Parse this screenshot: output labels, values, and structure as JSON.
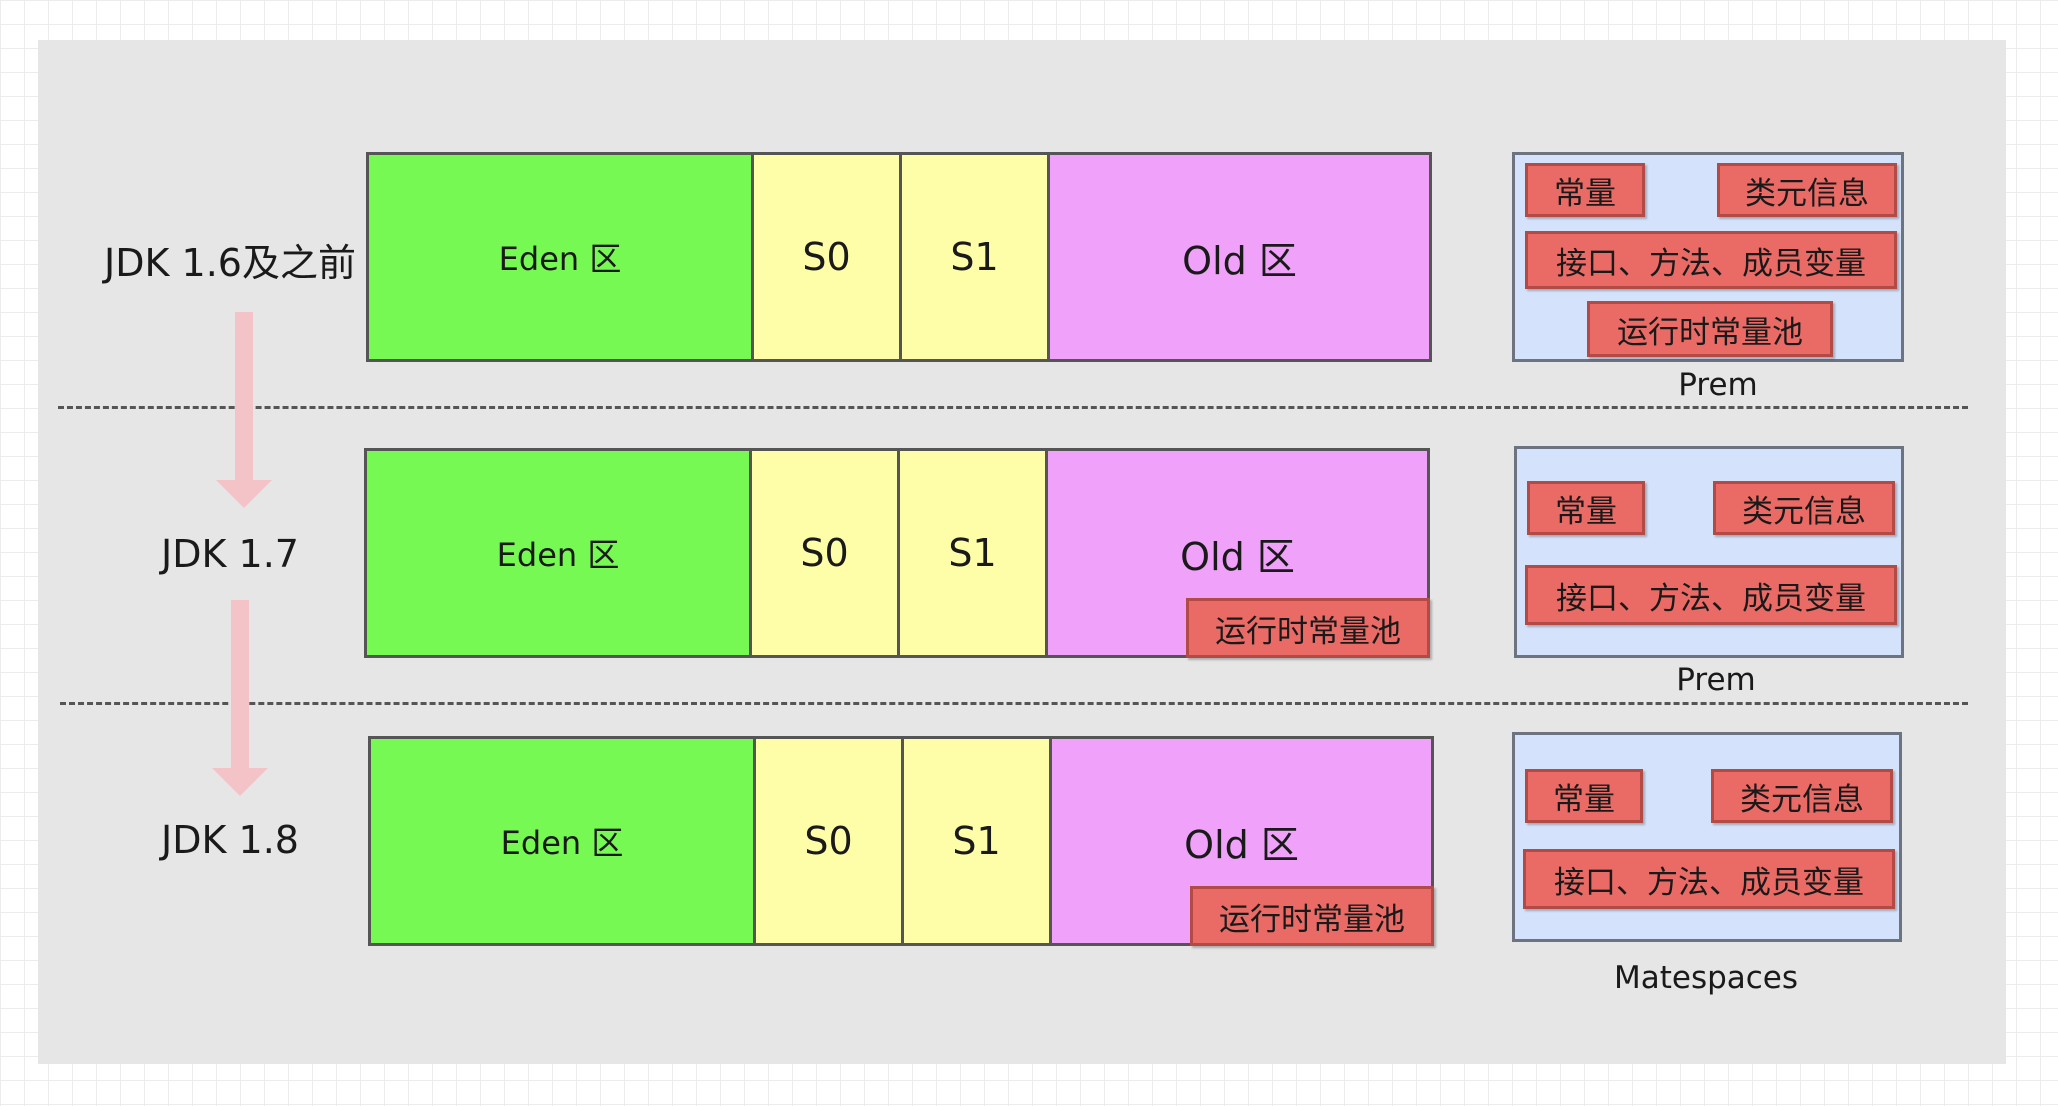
{
  "colors": {
    "eden": "#76f952",
    "survivor": "#fffea8",
    "old": "#f0a2fb",
    "red_box": "#ea6b66",
    "space": "#d4e3fb",
    "arrow": "#f4c3c7",
    "panel": "#e6e6e6"
  },
  "rows": [
    {
      "label": "JDK 1.6及之前",
      "eden": "Eden 区",
      "s0": "S0",
      "s1": "S1",
      "old": "Old 区",
      "old_box": "",
      "space_items": [
        "常量",
        "类元信息",
        "接口、方法、成员变量",
        "运行时常量池"
      ],
      "space_label": "Prem"
    },
    {
      "label": "JDK 1.7",
      "eden": "Eden 区",
      "s0": "S0",
      "s1": "S1",
      "old": "Old 区",
      "old_box": "运行时常量池",
      "space_items": [
        "常量",
        "类元信息",
        "接口、方法、成员变量"
      ],
      "space_label": "Prem"
    },
    {
      "label": "JDK 1.8",
      "eden": "Eden 区",
      "s0": "S0",
      "s1": "S1",
      "old": "Old 区",
      "old_box": "运行时常量池",
      "space_items": [
        "常量",
        "类元信息",
        "接口、方法、成员变量"
      ],
      "space_label": "Matespaces"
    }
  ]
}
